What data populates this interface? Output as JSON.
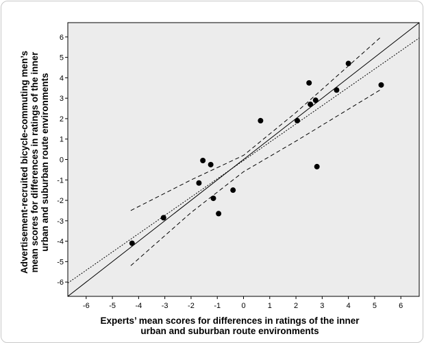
{
  "chart_data": {
    "type": "scatter",
    "xlabel": [
      "Experts’ mean scores for differences in ratings of the inner",
      "urban and suburban route environments"
    ],
    "ylabel": [
      "Advertisement-recruited bicycle-commuting men’s",
      "mean scores for differences in ratings of the inner",
      "urban and suburban route environments"
    ],
    "xlim": [
      -6.7,
      6.7
    ],
    "ylim": [
      -6.7,
      6.7
    ],
    "x_ticks": [
      -6,
      -5,
      -4,
      -3,
      -2,
      -1,
      0,
      1,
      2,
      3,
      4,
      5,
      6
    ],
    "y_ticks": [
      -6,
      -5,
      -4,
      -3,
      -2,
      -1,
      0,
      1,
      2,
      3,
      4,
      5,
      6
    ],
    "x_tick_labels": [
      "-6",
      "-5",
      "-4",
      "-3",
      "-2",
      "-1",
      "0",
      "1",
      "2",
      "3",
      "4",
      "5",
      "6"
    ],
    "y_tick_labels": [
      "-6",
      "-5",
      "-4",
      "-3",
      "-2",
      "-1",
      "0",
      "1",
      "2",
      "3",
      "4",
      "5",
      "6"
    ],
    "grid": false,
    "background_color": "#ececec",
    "points": [
      {
        "x": -4.25,
        "y": -4.1
      },
      {
        "x": -3.05,
        "y": -2.85
      },
      {
        "x": -1.7,
        "y": -1.15
      },
      {
        "x": -1.55,
        "y": -0.05
      },
      {
        "x": -1.25,
        "y": -0.25
      },
      {
        "x": -1.15,
        "y": -1.9
      },
      {
        "x": -0.95,
        "y": -2.65
      },
      {
        "x": -0.4,
        "y": -1.5
      },
      {
        "x": 0.65,
        "y": 1.9
      },
      {
        "x": 2.05,
        "y": 1.9
      },
      {
        "x": 2.5,
        "y": 3.75
      },
      {
        "x": 2.55,
        "y": 2.7
      },
      {
        "x": 2.75,
        "y": 2.9
      },
      {
        "x": 2.8,
        "y": -0.35
      },
      {
        "x": 3.55,
        "y": 3.4
      },
      {
        "x": 4.0,
        "y": 4.7
      },
      {
        "x": 5.25,
        "y": 3.65
      }
    ],
    "identity_line": {
      "from": [
        -6.7,
        -6.7
      ],
      "to": [
        6.7,
        6.7
      ],
      "style": "solid"
    },
    "regression_line": {
      "from": [
        -6.7,
        -6.05
      ],
      "to": [
        6.7,
        5.95
      ],
      "style": "dotted"
    },
    "confidence_upper": [
      [
        -4.3,
        -2.5
      ],
      [
        -2.0,
        -1.0
      ],
      [
        0.0,
        0.2
      ],
      [
        2.0,
        2.3
      ],
      [
        5.2,
        5.95
      ]
    ],
    "confidence_lower": [
      [
        -4.3,
        -5.2
      ],
      [
        -2.0,
        -2.6
      ],
      [
        0.0,
        -0.6
      ],
      [
        2.0,
        0.9
      ],
      [
        5.2,
        3.4
      ]
    ]
  }
}
